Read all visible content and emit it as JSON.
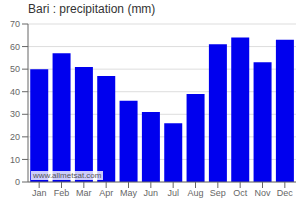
{
  "chart_data": {
    "type": "bar",
    "title": "Bari : precipitation (mm)",
    "categories": [
      "Jan",
      "Feb",
      "Mar",
      "Apr",
      "May",
      "Jun",
      "Jul",
      "Aug",
      "Sep",
      "Oct",
      "Nov",
      "Dec"
    ],
    "values": [
      50,
      57,
      51,
      47,
      36,
      31,
      26,
      39,
      61,
      64,
      53,
      63
    ],
    "color": "#0000ee",
    "ylim": [
      0,
      70
    ],
    "yticks": [
      0,
      10,
      20,
      30,
      40,
      50,
      60,
      70
    ],
    "grid": true,
    "annotation": "www.allmetsat.com"
  }
}
